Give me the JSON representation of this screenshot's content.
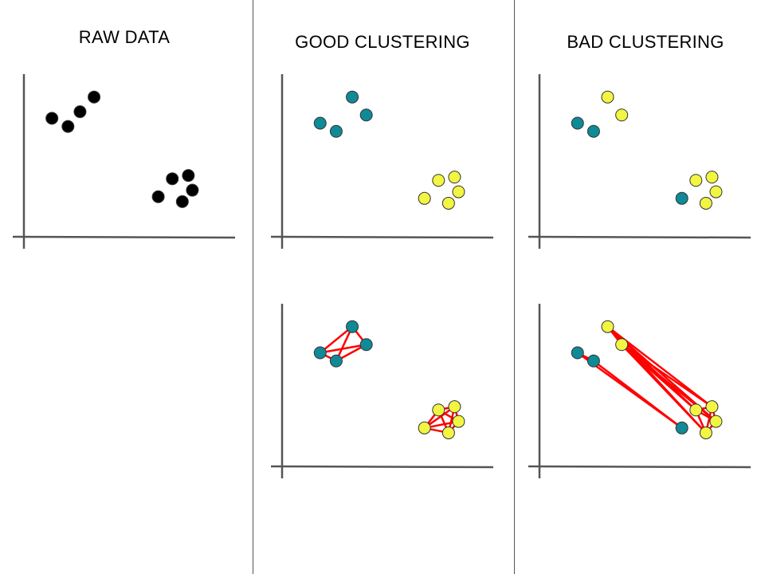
{
  "columns": [
    {
      "title": "RAW DATA"
    },
    {
      "title": "GOOD CLUSTERING"
    },
    {
      "title": "BAD CLUSTERING"
    }
  ],
  "colors": {
    "unclustered": "#000000",
    "cluster_teal": "#0f8a96",
    "cluster_yellow": "#f2f542",
    "distance_line": "#ff0000",
    "axis": "#555555"
  },
  "panels": [
    {
      "column": 0,
      "row": 0,
      "connect": false,
      "points": [
        {
          "x": 0.31,
          "y": 0.86,
          "cluster": "none"
        },
        {
          "x": 0.24,
          "y": 0.77,
          "cluster": "none"
        },
        {
          "x": 0.1,
          "y": 0.73,
          "cluster": "none"
        },
        {
          "x": 0.18,
          "y": 0.68,
          "cluster": "none"
        },
        {
          "x": 0.78,
          "y": 0.38,
          "cluster": "none"
        },
        {
          "x": 0.7,
          "y": 0.36,
          "cluster": "none"
        },
        {
          "x": 0.8,
          "y": 0.29,
          "cluster": "none"
        },
        {
          "x": 0.63,
          "y": 0.25,
          "cluster": "none"
        },
        {
          "x": 0.75,
          "y": 0.22,
          "cluster": "none"
        }
      ]
    },
    {
      "column": 1,
      "row": 0,
      "connect": false,
      "points": [
        {
          "x": 0.31,
          "y": 0.86,
          "cluster": "teal"
        },
        {
          "x": 0.38,
          "y": 0.75,
          "cluster": "teal"
        },
        {
          "x": 0.15,
          "y": 0.7,
          "cluster": "teal"
        },
        {
          "x": 0.23,
          "y": 0.65,
          "cluster": "teal"
        },
        {
          "x": 0.82,
          "y": 0.37,
          "cluster": "yellow"
        },
        {
          "x": 0.74,
          "y": 0.35,
          "cluster": "yellow"
        },
        {
          "x": 0.84,
          "y": 0.28,
          "cluster": "yellow"
        },
        {
          "x": 0.67,
          "y": 0.24,
          "cluster": "yellow"
        },
        {
          "x": 0.79,
          "y": 0.21,
          "cluster": "yellow"
        }
      ]
    },
    {
      "column": 2,
      "row": 0,
      "connect": false,
      "points": [
        {
          "x": 0.3,
          "y": 0.86,
          "cluster": "yellow"
        },
        {
          "x": 0.37,
          "y": 0.75,
          "cluster": "yellow"
        },
        {
          "x": 0.15,
          "y": 0.7,
          "cluster": "teal"
        },
        {
          "x": 0.23,
          "y": 0.65,
          "cluster": "teal"
        },
        {
          "x": 0.82,
          "y": 0.37,
          "cluster": "yellow"
        },
        {
          "x": 0.74,
          "y": 0.35,
          "cluster": "yellow"
        },
        {
          "x": 0.84,
          "y": 0.28,
          "cluster": "yellow"
        },
        {
          "x": 0.67,
          "y": 0.24,
          "cluster": "teal"
        },
        {
          "x": 0.79,
          "y": 0.21,
          "cluster": "yellow"
        }
      ]
    },
    {
      "column": 1,
      "row": 1,
      "connect": true,
      "points": [
        {
          "x": 0.31,
          "y": 0.86,
          "cluster": "teal"
        },
        {
          "x": 0.38,
          "y": 0.75,
          "cluster": "teal"
        },
        {
          "x": 0.15,
          "y": 0.7,
          "cluster": "teal"
        },
        {
          "x": 0.23,
          "y": 0.65,
          "cluster": "teal"
        },
        {
          "x": 0.82,
          "y": 0.37,
          "cluster": "yellow"
        },
        {
          "x": 0.74,
          "y": 0.35,
          "cluster": "yellow"
        },
        {
          "x": 0.84,
          "y": 0.28,
          "cluster": "yellow"
        },
        {
          "x": 0.67,
          "y": 0.24,
          "cluster": "yellow"
        },
        {
          "x": 0.79,
          "y": 0.21,
          "cluster": "yellow"
        }
      ]
    },
    {
      "column": 2,
      "row": 1,
      "connect": true,
      "points": [
        {
          "x": 0.3,
          "y": 0.86,
          "cluster": "yellow"
        },
        {
          "x": 0.37,
          "y": 0.75,
          "cluster": "yellow"
        },
        {
          "x": 0.15,
          "y": 0.7,
          "cluster": "teal"
        },
        {
          "x": 0.23,
          "y": 0.65,
          "cluster": "teal"
        },
        {
          "x": 0.82,
          "y": 0.37,
          "cluster": "yellow"
        },
        {
          "x": 0.74,
          "y": 0.35,
          "cluster": "yellow"
        },
        {
          "x": 0.84,
          "y": 0.28,
          "cluster": "yellow"
        },
        {
          "x": 0.67,
          "y": 0.24,
          "cluster": "teal"
        },
        {
          "x": 0.79,
          "y": 0.21,
          "cluster": "yellow"
        }
      ]
    }
  ]
}
